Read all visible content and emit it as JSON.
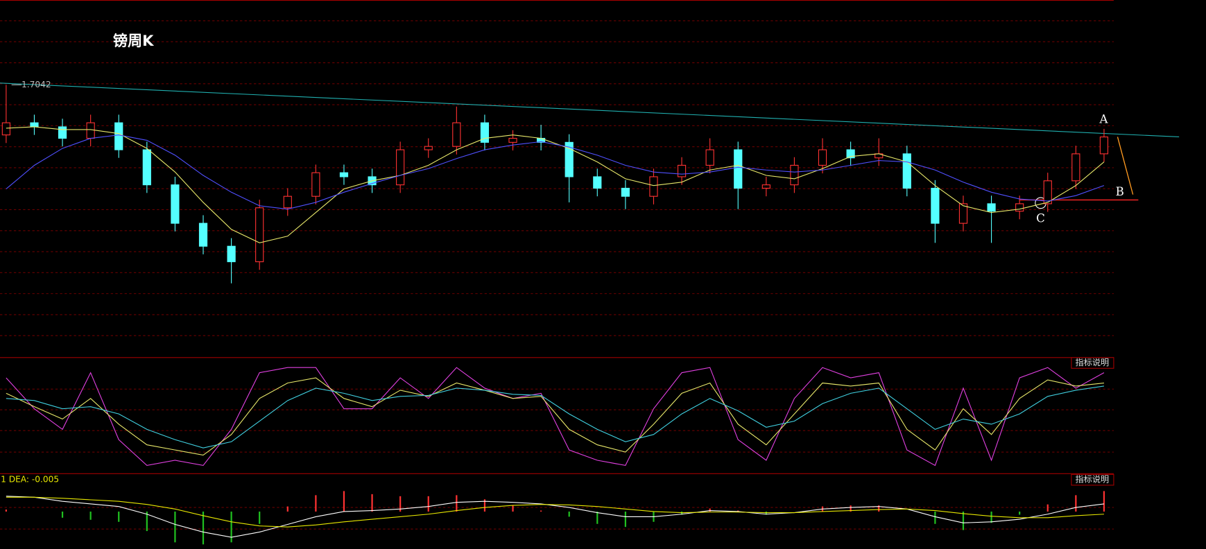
{
  "chart_data": [
    {
      "type": "candlestick",
      "title": "镑周K",
      "high_label": 1.7042,
      "annotations": [
        "A",
        "B",
        "C"
      ],
      "ylim": [
        1.3,
        1.83
      ],
      "open": [
        1.63,
        1.648,
        1.642,
        1.625,
        1.648,
        1.608,
        1.556,
        1.499,
        1.465,
        1.442,
        1.522,
        1.539,
        1.574,
        1.568,
        1.556,
        1.608,
        1.613,
        1.648,
        1.619,
        1.625,
        1.619,
        1.568,
        1.551,
        1.539,
        1.568,
        1.585,
        1.608,
        1.551,
        1.556,
        1.585,
        1.608,
        1.596,
        1.602,
        1.551,
        1.499,
        1.528,
        1.517,
        1.528,
        1.562,
        1.602
      ],
      "high": [
        1.7042,
        1.66,
        1.654,
        1.66,
        1.66,
        1.62,
        1.568,
        1.511,
        1.477,
        1.534,
        1.551,
        1.586,
        1.586,
        1.58,
        1.62,
        1.625,
        1.672,
        1.66,
        1.637,
        1.645,
        1.631,
        1.58,
        1.563,
        1.58,
        1.597,
        1.625,
        1.62,
        1.568,
        1.597,
        1.625,
        1.62,
        1.625,
        1.614,
        1.563,
        1.54,
        1.54,
        1.54,
        1.574,
        1.614,
        1.639
      ],
      "low": [
        1.618,
        1.63,
        1.613,
        1.613,
        1.596,
        1.544,
        1.487,
        1.453,
        1.41,
        1.43,
        1.51,
        1.527,
        1.556,
        1.544,
        1.544,
        1.596,
        1.601,
        1.607,
        1.607,
        1.607,
        1.53,
        1.539,
        1.52,
        1.527,
        1.556,
        1.573,
        1.52,
        1.539,
        1.544,
        1.573,
        1.584,
        1.584,
        1.539,
        1.47,
        1.487,
        1.47,
        1.505,
        1.516,
        1.55,
        1.59
      ],
      "close": [
        1.648,
        1.642,
        1.625,
        1.648,
        1.608,
        1.556,
        1.499,
        1.465,
        1.442,
        1.522,
        1.539,
        1.574,
        1.568,
        1.556,
        1.608,
        1.613,
        1.648,
        1.619,
        1.625,
        1.619,
        1.568,
        1.551,
        1.539,
        1.568,
        1.585,
        1.608,
        1.551,
        1.556,
        1.585,
        1.608,
        1.596,
        1.602,
        1.551,
        1.499,
        1.528,
        1.517,
        1.528,
        1.562,
        1.602,
        1.627
      ],
      "up_color": "#ff3232",
      "down_color": "#54ffff",
      "series": [
        {
          "color": "#e8e86a",
          "values": [
            1.64,
            1.642,
            1.638,
            1.638,
            1.632,
            1.61,
            1.575,
            1.53,
            1.49,
            1.47,
            1.48,
            1.515,
            1.55,
            1.562,
            1.57,
            1.585,
            1.608,
            1.625,
            1.63,
            1.625,
            1.61,
            1.59,
            1.565,
            1.555,
            1.56,
            1.578,
            1.585,
            1.57,
            1.565,
            1.58,
            1.598,
            1.602,
            1.59,
            1.555,
            1.525,
            1.515,
            1.52,
            1.53,
            1.555,
            1.59
          ]
        },
        {
          "color": "#5050ff",
          "values": [
            1.55,
            1.585,
            1.61,
            1.625,
            1.63,
            1.622,
            1.6,
            1.57,
            1.545,
            1.525,
            1.52,
            1.53,
            1.545,
            1.558,
            1.57,
            1.58,
            1.595,
            1.608,
            1.615,
            1.62,
            1.612,
            1.6,
            1.585,
            1.575,
            1.572,
            1.575,
            1.582,
            1.578,
            1.575,
            1.578,
            1.585,
            1.592,
            1.59,
            1.578,
            1.56,
            1.545,
            1.535,
            1.532,
            1.54,
            1.555
          ]
        }
      ]
    },
    {
      "type": "line",
      "button": "指标说明",
      "ylim": [
        0,
        100
      ],
      "series": [
        {
          "color": "#e040e0",
          "values": [
            90,
            60,
            40,
            95,
            30,
            5,
            10,
            5,
            40,
            95,
            100,
            100,
            60,
            60,
            90,
            70,
            100,
            80,
            70,
            75,
            20,
            10,
            5,
            60,
            95,
            100,
            30,
            10,
            70,
            100,
            90,
            95,
            20,
            5,
            80,
            10,
            90,
            100,
            80,
            95
          ]
        },
        {
          "color": "#e8e86a",
          "values": [
            75,
            62,
            50,
            70,
            45,
            25,
            20,
            15,
            35,
            70,
            85,
            90,
            70,
            62,
            78,
            72,
            85,
            78,
            70,
            72,
            40,
            25,
            18,
            45,
            75,
            85,
            45,
            25,
            55,
            85,
            82,
            85,
            40,
            20,
            60,
            35,
            70,
            88,
            82,
            85
          ]
        },
        {
          "color": "#40d0e0",
          "values": [
            70,
            68,
            60,
            62,
            55,
            40,
            30,
            22,
            28,
            48,
            68,
            80,
            75,
            68,
            72,
            73,
            80,
            78,
            74,
            73,
            55,
            40,
            28,
            35,
            55,
            70,
            58,
            42,
            48,
            65,
            75,
            80,
            60,
            40,
            50,
            45,
            55,
            72,
            78,
            82
          ]
        }
      ]
    },
    {
      "type": "macd",
      "button": "指标说明",
      "legend_text": "1 DEA: -0.005",
      "ylim": [
        -0.07,
        0.05
      ],
      "up_color": "#ff3232",
      "down_color": "#20c020",
      "histogram": [
        0.004,
        0,
        -0.012,
        -0.016,
        -0.02,
        -0.038,
        -0.06,
        -0.064,
        -0.06,
        -0.024,
        0.01,
        0.032,
        0.04,
        0.034,
        0.03,
        0.03,
        0.032,
        0.024,
        0.012,
        0.002,
        -0.01,
        -0.024,
        -0.03,
        -0.02,
        -0.006,
        0.006,
        0.002,
        -0.006,
        0,
        0.01,
        0.012,
        0.012,
        0,
        -0.024,
        -0.036,
        -0.022,
        -0.006,
        0.014,
        0.032,
        0.04
      ],
      "series": [
        {
          "color": "#ffffff",
          "values": [
            0.03,
            0.028,
            0.02,
            0.015,
            0.01,
            -0.005,
            -0.025,
            -0.04,
            -0.05,
            -0.04,
            -0.025,
            -0.01,
            0.0,
            0.002,
            0.005,
            0.01,
            0.018,
            0.02,
            0.018,
            0.015,
            0.008,
            -0.002,
            -0.01,
            -0.01,
            -0.005,
            0.002,
            0.0,
            -0.005,
            -0.002,
            0.005,
            0.008,
            0.01,
            0.005,
            -0.01,
            -0.022,
            -0.02,
            -0.015,
            -0.005,
            0.008,
            0.015
          ]
        },
        {
          "color": "#e8e800",
          "values": [
            0.028,
            0.028,
            0.026,
            0.023,
            0.02,
            0.014,
            0.005,
            -0.008,
            -0.02,
            -0.028,
            -0.03,
            -0.026,
            -0.02,
            -0.015,
            -0.01,
            -0.005,
            0.002,
            0.008,
            0.012,
            0.014,
            0.013,
            0.01,
            0.005,
            0.0,
            -0.002,
            -0.001,
            -0.001,
            -0.002,
            -0.002,
            0.0,
            0.002,
            0.004,
            0.005,
            0.002,
            -0.004,
            -0.009,
            -0.012,
            -0.012,
            -0.008,
            -0.005
          ]
        }
      ]
    }
  ]
}
